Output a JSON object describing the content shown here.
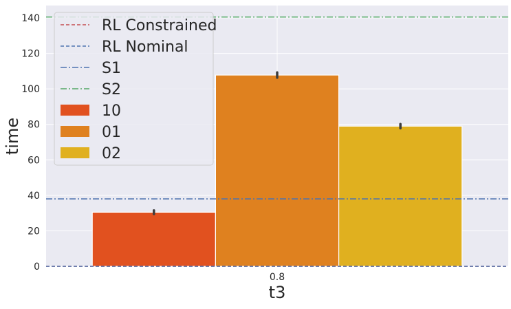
{
  "chart_data": {
    "type": "bar",
    "categories": [
      "0.8"
    ],
    "xlabel": "t3",
    "ylabel": "time",
    "ylim": [
      0,
      147
    ],
    "yticks": [
      0,
      20,
      40,
      60,
      80,
      100,
      120,
      140
    ],
    "grid": true,
    "legend_placement": "top-left",
    "series": [
      {
        "name": "10",
        "values": [
          30.5
        ],
        "error": [
          1.0
        ],
        "color": "#e1511f"
      },
      {
        "name": "01",
        "values": [
          107.8
        ],
        "error": [
          1.5
        ],
        "color": "#df811f"
      },
      {
        "name": "02",
        "values": [
          79.0
        ],
        "error": [
          1.2
        ],
        "color": "#e0b01f"
      }
    ],
    "reference_lines": [
      {
        "name": "RL Constrained",
        "y": 0,
        "color": "#c44e52",
        "style": "dashed"
      },
      {
        "name": "RL Nominal",
        "y": 0,
        "color": "#4c72b0",
        "style": "dashed"
      },
      {
        "name": "S1",
        "y": 38,
        "color": "#4c72b0",
        "style": "dashdot"
      },
      {
        "name": "S2",
        "y": 140.5,
        "color": "#55a868",
        "style": "dashdot"
      }
    ]
  }
}
